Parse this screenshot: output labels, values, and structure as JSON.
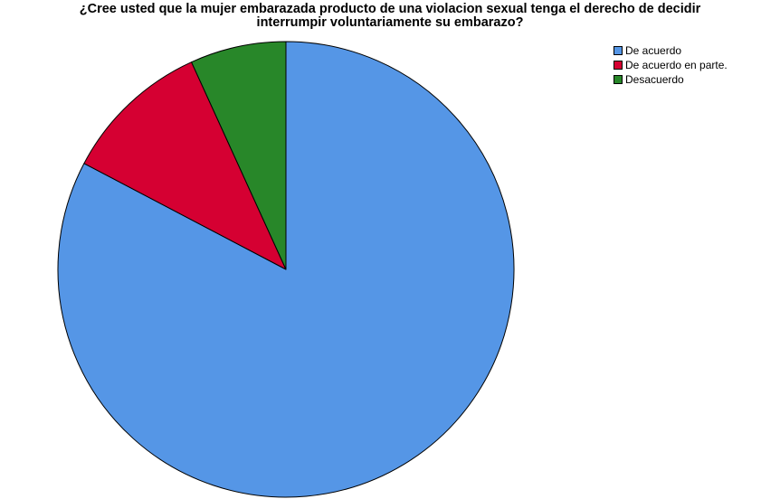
{
  "chart_data": {
    "type": "pie",
    "title_lines": [
      "¿Cree usted que la mujer embarazada producto de una violacion sexual tenga el derecho de decidir",
      "interrumpir voluntariamente su embarazo?"
    ],
    "categories": [
      "De acuerdo",
      "De acuerdo en parte.",
      "Desacuerdo"
    ],
    "values": [
      82.7,
      10.5,
      6.8
    ],
    "colors": [
      "#5596e6",
      "#d50032",
      "#288729"
    ],
    "legend_placement": "top-right",
    "start_angle_deg": 0,
    "direction": "clockwise"
  }
}
